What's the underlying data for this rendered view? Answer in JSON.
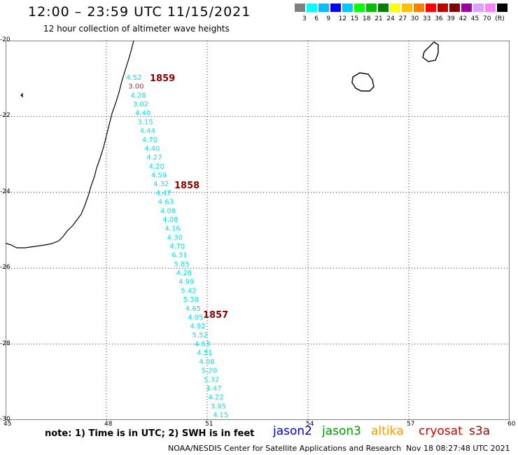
{
  "header": {
    "title": "12:00 – 23:59 UTC 11/15/2021",
    "subtitle": "12 hour collection of altimeter wave heights"
  },
  "color_scale": {
    "colors": [
      "#808080",
      "#00ffff",
      "#00bfff",
      "#0000ff",
      "#00c8ff",
      "#00ff00",
      "#00c000",
      "#008000",
      "#ffff00",
      "#ffc000",
      "#ff8000",
      "#ff0000",
      "#c00000",
      "#800000",
      "#a000a0",
      "#e0a0ff",
      "#ff80ff",
      "#000000"
    ],
    "labels": [
      "3",
      "6",
      "9",
      "12",
      "15",
      "18",
      "21",
      "24",
      "27",
      "30",
      "33",
      "36",
      "39",
      "42",
      "45",
      "70",
      "(ft)"
    ]
  },
  "map": {
    "lat_ticks": [
      "-20",
      "-22",
      "-24",
      "-26",
      "-28",
      "-30"
    ],
    "lon_ticks": [
      "45",
      "48",
      "51",
      "54",
      "57",
      "60"
    ],
    "swh_color": "#00e5ee",
    "pass_color": "#8b0000",
    "swh_values": [
      "4.52",
      "3.00",
      "4.28",
      "3.02",
      "4.40",
      "3.15",
      "4.44",
      "4.70",
      "4.40",
      "4.27",
      "4.20",
      "4.59",
      "4.32",
      "4.47",
      "4.63",
      "4.08",
      "4.08",
      "4.16",
      "4.30",
      "4.70",
      "6.31",
      "5.85",
      "4.26",
      "4.99",
      "5.42",
      "5.38",
      "4.65",
      "4.05",
      "4.92",
      "5.52",
      "4.63",
      "4.51",
      "4.08",
      "5.20",
      "5.32",
      "4.47",
      "4.22",
      "3.95",
      "4.15"
    ],
    "pass_labels": [
      "1859",
      "1858",
      "1857"
    ]
  },
  "footer": {
    "note": "note: 1) Time is in UTC; 2) SWH is in feet",
    "legend": [
      {
        "label": "jason2",
        "color": "#0000cc"
      },
      {
        "label": "jason3",
        "color": "#009900"
      },
      {
        "label": "altika",
        "color": "#ff9900"
      },
      {
        "label": "cryosat",
        "color": "#cc0000"
      },
      {
        "label": "s3a",
        "color": "#990000"
      }
    ],
    "credit": "NOAA/NESDIS Center for Satellite Applications and Research",
    "timestamp": "Nov 18 08:27:48 UTC 2021"
  }
}
